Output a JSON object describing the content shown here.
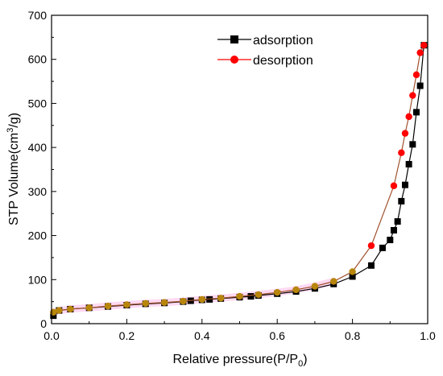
{
  "chart_data": {
    "type": "line",
    "xlabel_main": "Relative pressure(P/P",
    "xlabel_sub": "0",
    "xlabel_end": ")",
    "ylabel_main": "STP Volume(cm",
    "ylabel_sup": "3",
    "ylabel_end": "/g)",
    "xlim": [
      0,
      1.0
    ],
    "ylim": [
      0,
      700
    ],
    "x_ticks": [
      0.0,
      0.2,
      0.4,
      0.6,
      0.8,
      1.0
    ],
    "x_tick_labels": [
      "0.0",
      "0.2",
      "0.4",
      "0.6",
      "0.8",
      "1.0"
    ],
    "y_ticks": [
      0,
      100,
      200,
      300,
      400,
      500,
      600,
      700
    ],
    "y_tick_labels": [
      "0",
      "100",
      "200",
      "300",
      "400",
      "500",
      "600",
      "700"
    ],
    "grid": false,
    "legend_position": "top-center",
    "series": [
      {
        "name": "adsorption",
        "color": "#000000",
        "marker": "square",
        "x": [
          0.005,
          0.02,
          0.05,
          0.1,
          0.15,
          0.2,
          0.25,
          0.3,
          0.35,
          0.37,
          0.4,
          0.42,
          0.45,
          0.5,
          0.53,
          0.55,
          0.6,
          0.65,
          0.7,
          0.75,
          0.8,
          0.85,
          0.88,
          0.9,
          0.91,
          0.92,
          0.93,
          0.94,
          0.95,
          0.96,
          0.97,
          0.98,
          0.99
        ],
        "y": [
          18,
          30,
          33,
          36,
          39,
          42,
          45,
          47,
          50,
          52,
          54,
          55,
          57,
          60,
          62,
          64,
          68,
          73,
          80,
          90,
          107,
          132,
          172,
          190,
          212,
          232,
          278,
          315,
          362,
          407,
          480,
          540,
          632
        ]
      },
      {
        "name": "desorption",
        "color": "#ff0000",
        "marker": "circle",
        "x": [
          0.005,
          0.02,
          0.05,
          0.1,
          0.15,
          0.2,
          0.25,
          0.3,
          0.35,
          0.4,
          0.45,
          0.5,
          0.55,
          0.6,
          0.65,
          0.7,
          0.75,
          0.8,
          0.85,
          0.91,
          0.93,
          0.94,
          0.95,
          0.96,
          0.97,
          0.98,
          0.99
        ],
        "y": [
          26,
          30,
          33,
          36,
          40,
          43,
          46,
          48,
          51,
          55,
          58,
          62,
          66,
          71,
          77,
          85,
          96,
          118,
          177,
          313,
          388,
          432,
          470,
          518,
          565,
          615,
          632
        ]
      }
    ]
  }
}
